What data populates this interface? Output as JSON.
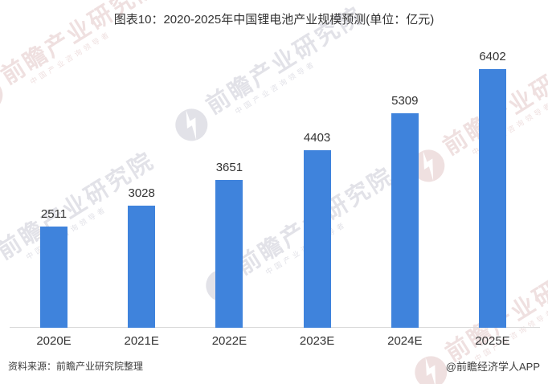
{
  "title": "图表10：2020-2025年中国锂电池产业规模预测(单位：亿元)",
  "chart_data": {
    "type": "bar",
    "title": "图表10：2020-2025年中国锂电池产业规模预测",
    "unit": "亿元",
    "categories": [
      "2020E",
      "2021E",
      "2022E",
      "2023E",
      "2024E",
      "2025E"
    ],
    "values": [
      2511,
      3028,
      3651,
      4403,
      5309,
      6402
    ],
    "xlabel": "",
    "ylabel": "",
    "ylim": [
      0,
      7000
    ],
    "grid": false,
    "legend": false,
    "value_labels_shown": true,
    "bar_color": "#3f83dc",
    "axis_line_color": "#d9d9d9",
    "text_color": "#333333"
  },
  "footer": {
    "source": "资料来源：前瞻产业研究院整理",
    "credit": "@前瞻经济学人APP"
  },
  "watermark": {
    "brand": "前瞻产业研究院",
    "subtext": "中国产业咨询领导者",
    "logo": "qianzhan-logo",
    "colors": {
      "gray": "#e2e2e8",
      "pink": "#efe0e0"
    }
  }
}
